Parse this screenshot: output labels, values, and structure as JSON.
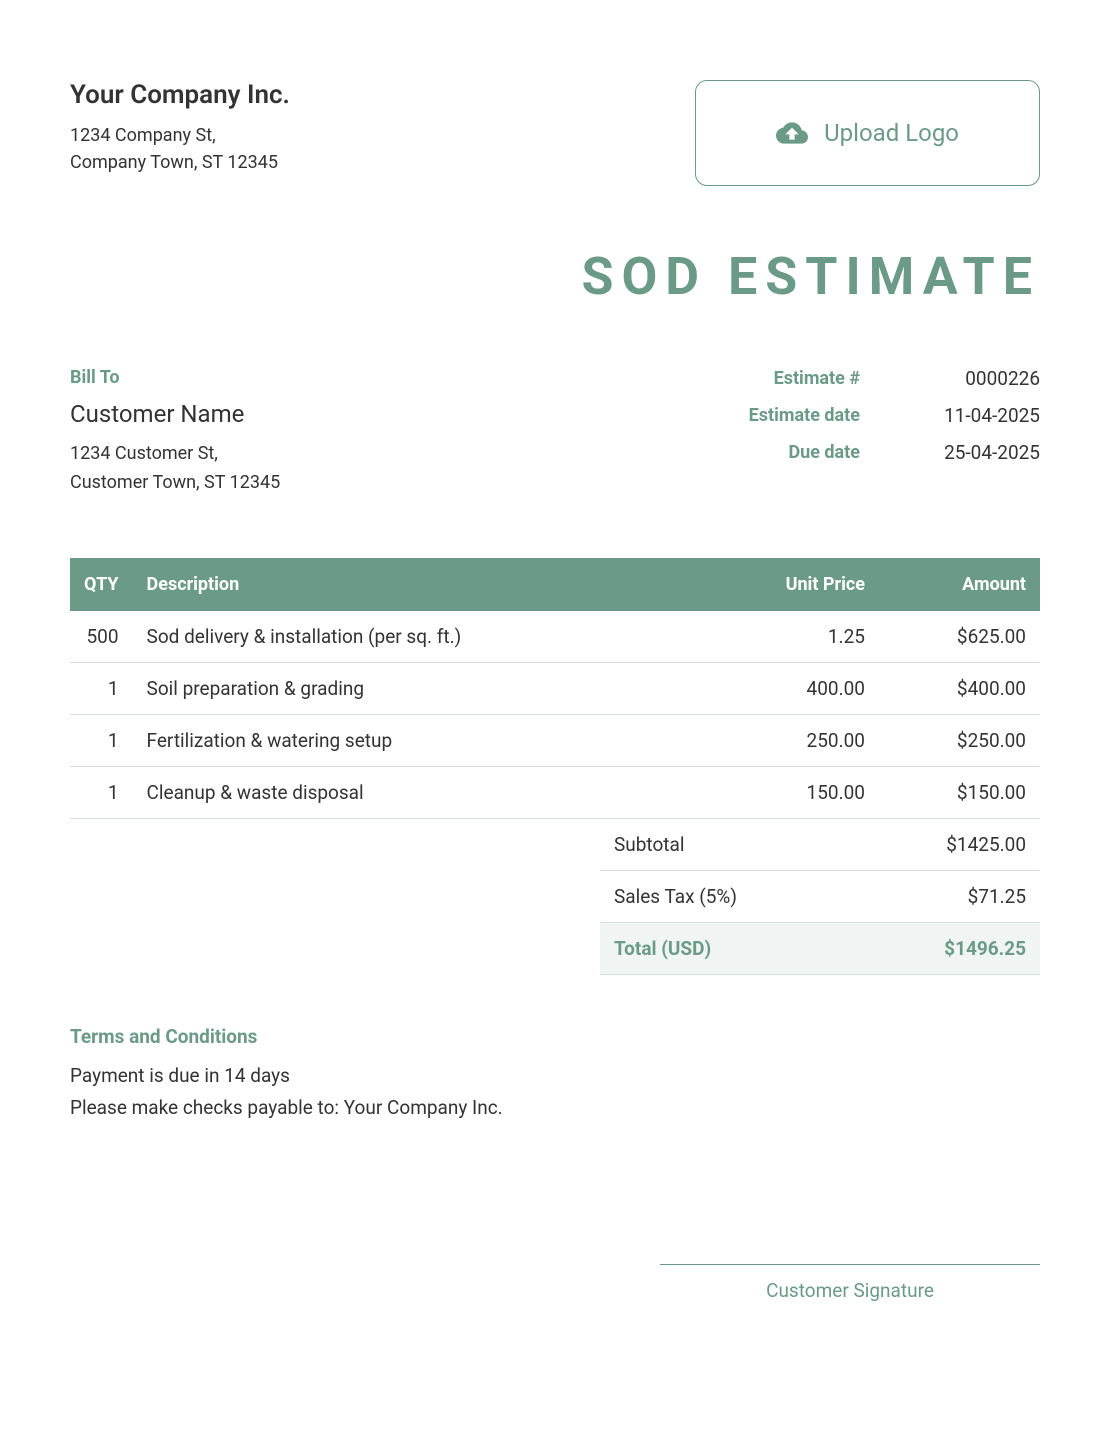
{
  "company": {
    "name": "Your Company Inc.",
    "address_line1": "1234 Company St,",
    "address_line2": "Company Town, ST 12345"
  },
  "upload_logo": {
    "label": "Upload Logo"
  },
  "document": {
    "title": "SOD ESTIMATE"
  },
  "bill_to": {
    "label": "Bill To",
    "customer_name": "Customer Name",
    "address_line1": "1234 Customer St,",
    "address_line2": "Customer Town, ST 12345"
  },
  "estimate_info": {
    "number_label": "Estimate #",
    "number_value": "0000226",
    "date_label": "Estimate date",
    "date_value": "11-04-2025",
    "due_label": "Due date",
    "due_value": "25-04-2025"
  },
  "table": {
    "headers": {
      "qty": "QTY",
      "description": "Description",
      "unit_price": "Unit Price",
      "amount": "Amount"
    },
    "rows": [
      {
        "qty": "500",
        "description": "Sod delivery & installation (per sq. ft.)",
        "unit_price": "1.25",
        "amount": "$625.00"
      },
      {
        "qty": "1",
        "description": "Soil preparation & grading",
        "unit_price": "400.00",
        "amount": "$400.00"
      },
      {
        "qty": "1",
        "description": "Fertilization & watering setup",
        "unit_price": "250.00",
        "amount": "$250.00"
      },
      {
        "qty": "1",
        "description": "Cleanup & waste disposal",
        "unit_price": "150.00",
        "amount": "$150.00"
      }
    ]
  },
  "totals": {
    "subtotal_label": "Subtotal",
    "subtotal_value": "$1425.00",
    "tax_label": "Sales Tax (5%)",
    "tax_value": "$71.25",
    "total_label": "Total (USD)",
    "total_value": "$1496.25"
  },
  "terms": {
    "label": "Terms and Conditions",
    "line1": "Payment is due in 14 days",
    "line2": "Please make checks payable to: Your Company Inc."
  },
  "signature": {
    "label": "Customer Signature"
  },
  "colors": {
    "accent": "#6b9a88",
    "text": "#333333",
    "row_border": "#d4e0db",
    "total_bg": "#f0f5f3",
    "background": "#ffffff"
  }
}
